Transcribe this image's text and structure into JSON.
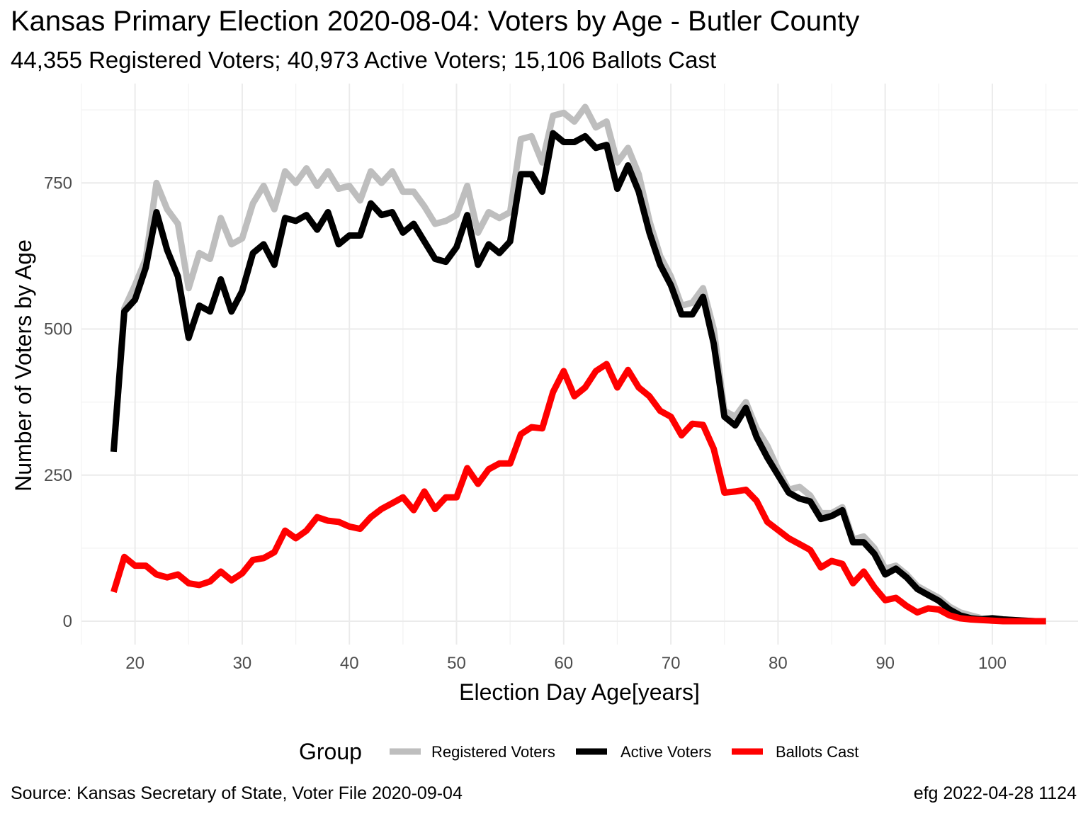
{
  "header": {
    "title": "Kansas Primary Election 2020-08-04:  Voters by Age - Butler County",
    "subtitle": "44,355 Registered Voters; 40,973 Active Voters; 15,106 Ballots Cast"
  },
  "footer": {
    "source": "Source:  Kansas Secretary of State, Voter File  2020-09-04",
    "credit": "efg 2022-04-28 1124"
  },
  "chart_data": {
    "type": "line",
    "xlabel": "Election Day Age[years]",
    "ylabel": "Number of Voters by Age",
    "xlim": [
      15,
      108
    ],
    "ylim": [
      -40,
      920
    ],
    "x_ticks": [
      20,
      30,
      40,
      50,
      60,
      70,
      80,
      90,
      100
    ],
    "y_ticks": [
      0,
      250,
      500,
      750
    ],
    "grid": true,
    "legend_title": "Group",
    "legend_position": "bottom",
    "x": [
      18,
      19,
      20,
      21,
      22,
      23,
      24,
      25,
      26,
      27,
      28,
      29,
      30,
      31,
      32,
      33,
      34,
      35,
      36,
      37,
      38,
      39,
      40,
      41,
      42,
      43,
      44,
      45,
      46,
      47,
      48,
      49,
      50,
      51,
      52,
      53,
      54,
      55,
      56,
      57,
      58,
      59,
      60,
      61,
      62,
      63,
      64,
      65,
      66,
      67,
      68,
      69,
      70,
      71,
      72,
      73,
      74,
      75,
      76,
      77,
      78,
      79,
      80,
      81,
      82,
      83,
      84,
      85,
      86,
      87,
      88,
      89,
      90,
      91,
      92,
      93,
      94,
      95,
      96,
      97,
      98,
      99,
      100,
      101,
      102,
      103,
      104,
      105
    ],
    "series": [
      {
        "name": "Registered Voters",
        "color": "#bebebe",
        "values": [
          290,
          535,
          575,
          620,
          750,
          705,
          680,
          570,
          630,
          620,
          690,
          645,
          655,
          715,
          745,
          705,
          770,
          750,
          775,
          745,
          770,
          740,
          745,
          720,
          770,
          750,
          770,
          735,
          735,
          710,
          680,
          685,
          695,
          745,
          665,
          700,
          690,
          700,
          825,
          830,
          785,
          865,
          870,
          855,
          880,
          845,
          855,
          785,
          810,
          765,
          685,
          625,
          590,
          540,
          545,
          570,
          500,
          360,
          350,
          375,
          330,
          300,
          260,
          225,
          230,
          215,
          185,
          185,
          195,
          140,
          145,
          125,
          90,
          95,
          80,
          60,
          50,
          40,
          25,
          15,
          10,
          5,
          5,
          3,
          2,
          1,
          0,
          0
        ]
      },
      {
        "name": "Active Voters",
        "color": "#000000",
        "values": [
          290,
          530,
          550,
          605,
          700,
          635,
          590,
          485,
          540,
          530,
          585,
          530,
          565,
          630,
          645,
          610,
          690,
          685,
          695,
          670,
          700,
          645,
          660,
          660,
          715,
          695,
          700,
          665,
          680,
          650,
          620,
          615,
          640,
          695,
          610,
          645,
          630,
          650,
          765,
          765,
          735,
          835,
          820,
          820,
          830,
          810,
          815,
          740,
          780,
          735,
          665,
          610,
          575,
          525,
          525,
          555,
          475,
          350,
          335,
          365,
          315,
          280,
          250,
          220,
          210,
          205,
          175,
          180,
          190,
          135,
          135,
          115,
          80,
          90,
          75,
          55,
          45,
          35,
          20,
          10,
          5,
          3,
          5,
          3,
          2,
          1,
          0,
          0
        ]
      },
      {
        "name": "Ballots Cast",
        "color": "#ff0000",
        "values": [
          50,
          110,
          95,
          95,
          80,
          75,
          80,
          65,
          62,
          68,
          85,
          70,
          82,
          105,
          108,
          118,
          155,
          142,
          155,
          178,
          172,
          170,
          162,
          158,
          178,
          192,
          202,
          212,
          190,
          222,
          192,
          212,
          212,
          262,
          235,
          260,
          270,
          270,
          320,
          332,
          330,
          392,
          428,
          385,
          400,
          428,
          440,
          400,
          430,
          400,
          385,
          360,
          350,
          318,
          338,
          336,
          295,
          220,
          222,
          225,
          206,
          170,
          156,
          142,
          132,
          122,
          92,
          103,
          98,
          65,
          85,
          58,
          36,
          40,
          26,
          15,
          22,
          20,
          10,
          5,
          3,
          2,
          1,
          0,
          0,
          0,
          0,
          0
        ]
      }
    ]
  }
}
